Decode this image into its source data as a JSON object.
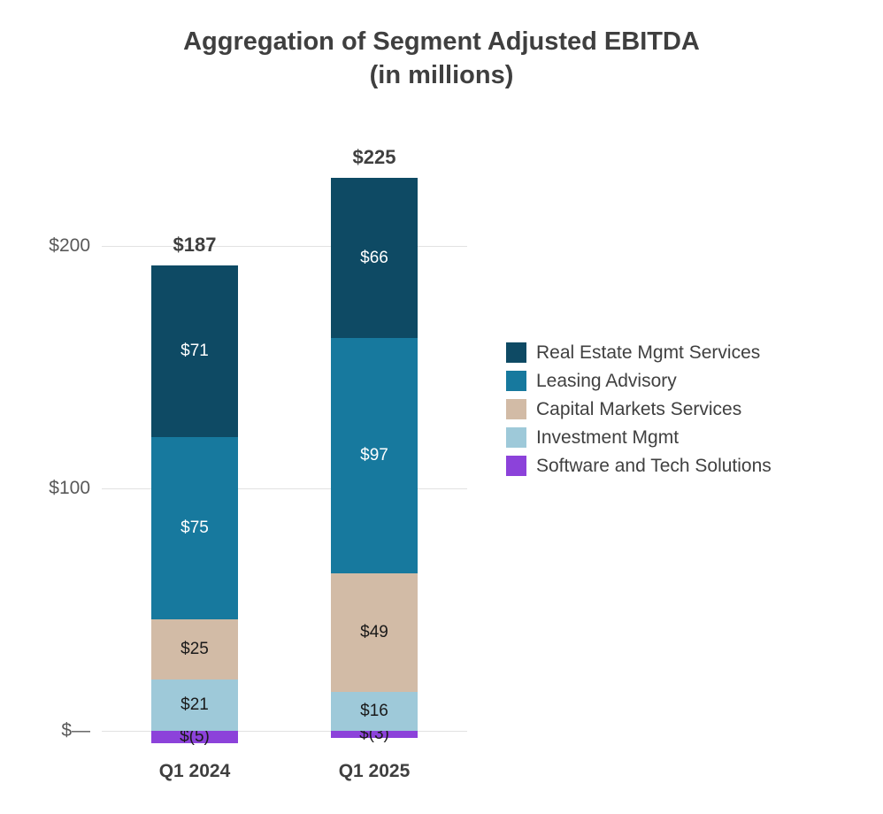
{
  "title": {
    "line1": "Aggregation of Segment Adjusted EBITDA",
    "line2": "(in millions)"
  },
  "chart_data": {
    "type": "bar",
    "stacked": true,
    "title": "Aggregation of Segment Adjusted EBITDA (in millions)",
    "categories": [
      "Q1 2024",
      "Q1 2025"
    ],
    "totals": {
      "values": [
        187,
        225
      ],
      "labels": [
        "$187",
        "$225"
      ]
    },
    "series": [
      {
        "name": "Software and Tech Solutions",
        "color": "#8c42da",
        "values": [
          -5,
          -3
        ],
        "labels": [
          "$(5)",
          "$(3)"
        ],
        "label_color": "#1a1a1a"
      },
      {
        "name": "Investment Mgmt",
        "color": "#9ec9d9",
        "values": [
          21,
          16
        ],
        "labels": [
          "$21",
          "$16"
        ],
        "label_color": "#1a1a1a"
      },
      {
        "name": "Capital Markets Services",
        "color": "#d2bba6",
        "values": [
          25,
          49
        ],
        "labels": [
          "$25",
          "$49"
        ],
        "label_color": "#1a1a1a"
      },
      {
        "name": "Leasing Advisory",
        "color": "#17799e",
        "values": [
          75,
          97
        ],
        "labels": [
          "$75",
          "$97"
        ],
        "label_color": "#ffffff"
      },
      {
        "name": "Real Estate Mgmt Services",
        "color": "#0e4a64",
        "values": [
          71,
          66
        ],
        "labels": [
          "$71",
          "$66"
        ],
        "label_color": "#ffffff"
      }
    ],
    "legend": {
      "position": "right",
      "order_top_to_bottom": [
        "Real Estate Mgmt Services",
        "Leasing Advisory",
        "Capital Markets Services",
        "Investment Mgmt",
        "Software and Tech Solutions"
      ]
    },
    "y_ticks": [
      {
        "value": 0,
        "label": "$—"
      },
      {
        "value": 100,
        "label": "$100"
      },
      {
        "value": 200,
        "label": "$200"
      }
    ],
    "ylim": [
      -10,
      240
    ],
    "grid": true,
    "xlabel": "",
    "ylabel": ""
  }
}
